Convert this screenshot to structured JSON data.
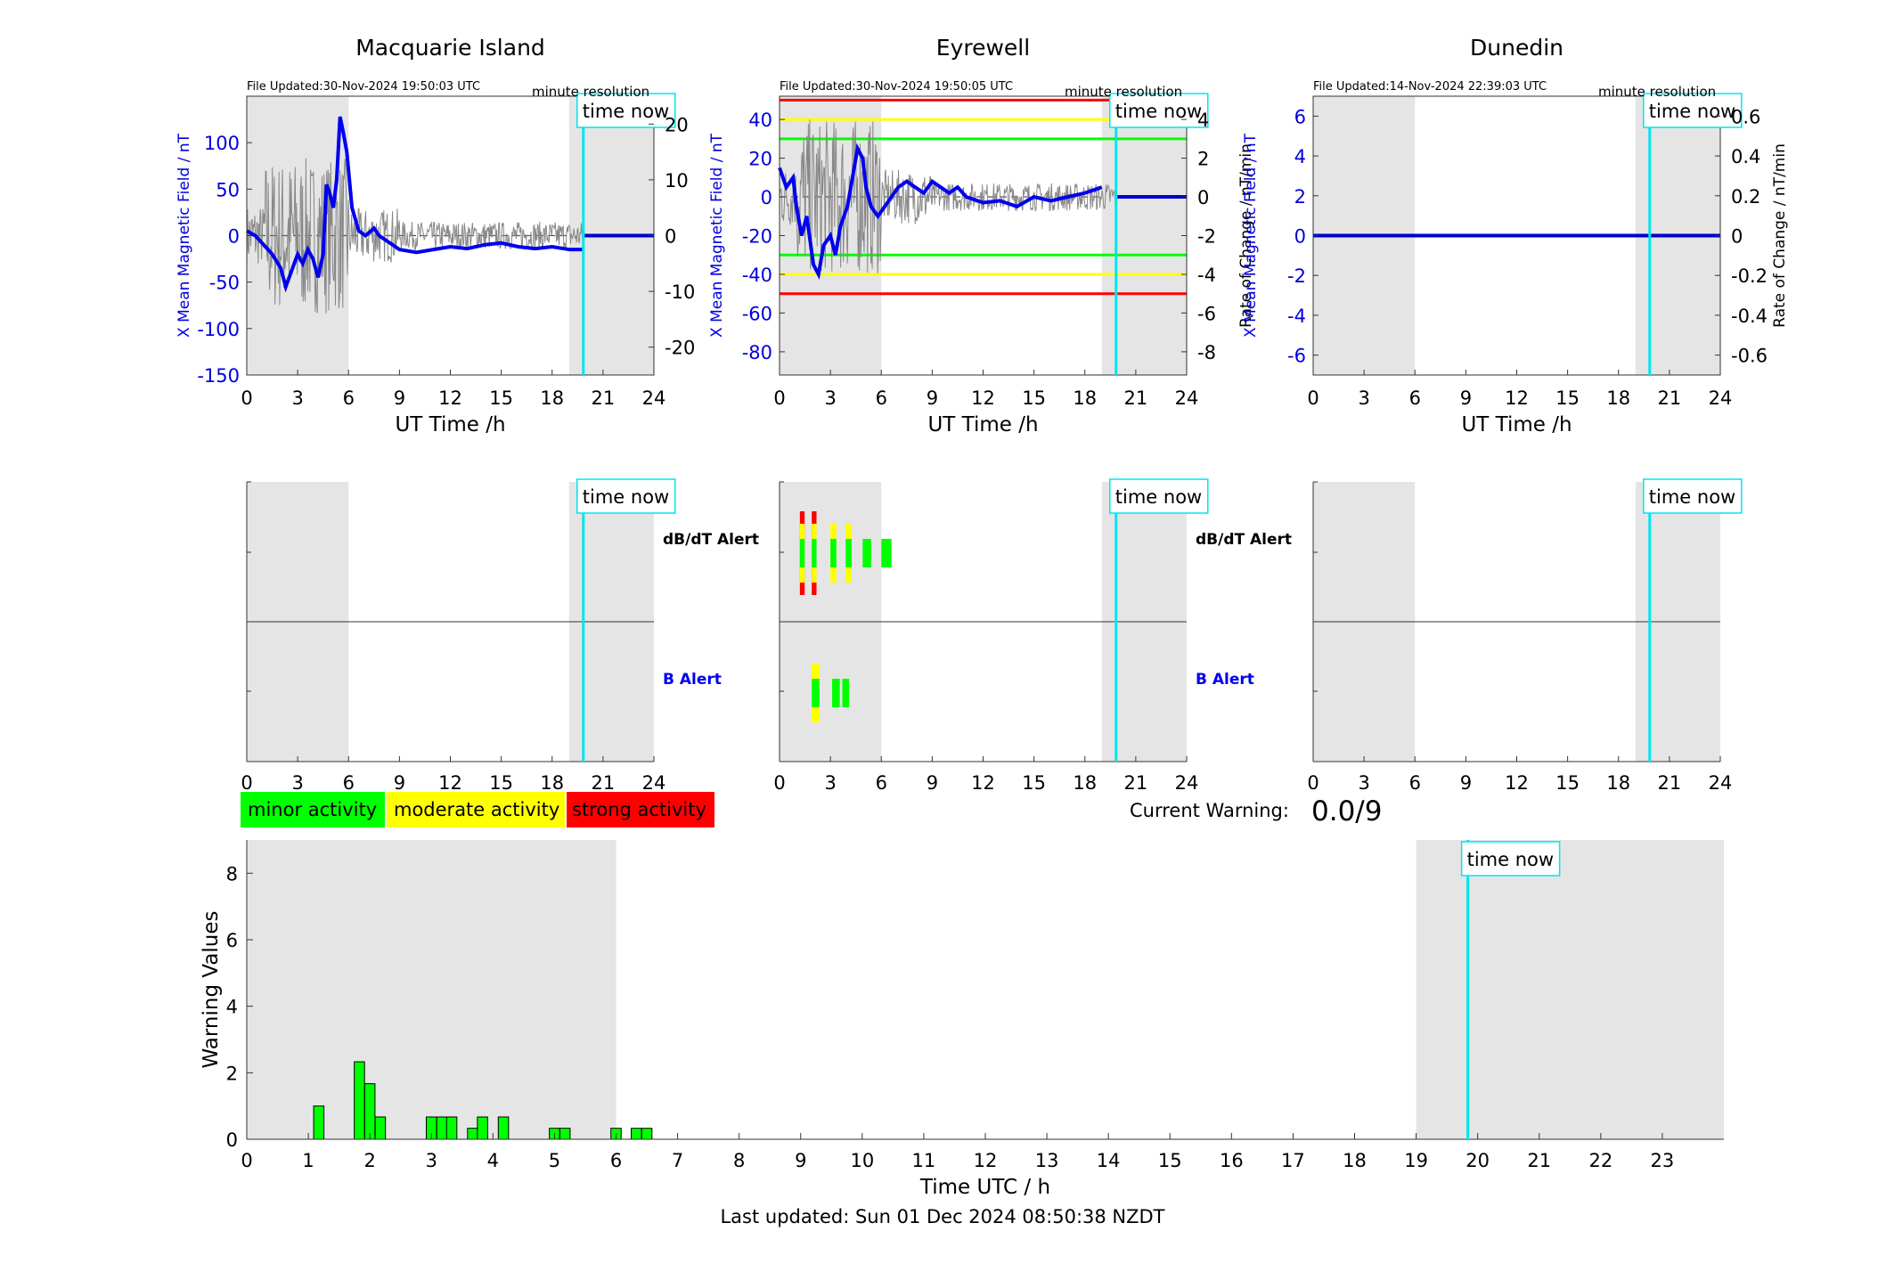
{
  "panels": [
    {
      "title": "Macquarie Island",
      "file_updated": "File Updated:30-Nov-2024 19:50:03 UTC",
      "resolution": "minute resolution",
      "left_ylabel": "X Mean Magnetic Field / nT",
      "right_ylabel": "",
      "left_yticks": [
        100,
        50,
        0,
        -50,
        -100,
        -150
      ],
      "right_yticks": [
        20,
        10,
        0,
        -10,
        -20
      ],
      "left_ylim": [
        -150,
        150
      ],
      "right_ylim": [
        -25,
        25
      ]
    },
    {
      "title": "Eyrewell",
      "file_updated": "File Updated:30-Nov-2024 19:50:05 UTC",
      "resolution": "minute resolution",
      "left_ylabel": "X Mean Magnetic Field / nT",
      "right_ylabel": "Rate of Change / nT/min",
      "left_yticks": [
        40,
        20,
        0,
        -20,
        -40,
        -60,
        -80
      ],
      "right_yticks": [
        4,
        2,
        0,
        -2,
        -4,
        -6,
        -8
      ],
      "left_ylim": [
        -92,
        52
      ],
      "right_ylim": [
        -9.2,
        5.2
      ],
      "thresholds": [
        {
          "value": 50,
          "color": "#ff0000"
        },
        {
          "value": 40,
          "color": "#ffff00"
        },
        {
          "value": 30,
          "color": "#00ff00"
        },
        {
          "value": -30,
          "color": "#00ff00"
        },
        {
          "value": -40,
          "color": "#ffff00"
        },
        {
          "value": -50,
          "color": "#ff0000"
        }
      ]
    },
    {
      "title": "Dunedin",
      "file_updated": "File Updated:14-Nov-2024 22:39:03 UTC",
      "resolution": "minute resolution",
      "left_ylabel": "X Mean Magnetic Field / nT",
      "right_ylabel": "Rate of Change / nT/min",
      "left_yticks": [
        6,
        4,
        2,
        0,
        -2,
        -4,
        -6
      ],
      "right_yticks": [
        "0.6",
        "0.4",
        "0.2",
        "0",
        "-0.2",
        "-0.4",
        "-0.6"
      ],
      "left_ylim": [
        -7,
        7
      ],
      "right_ylim": [
        -0.7,
        0.7
      ]
    }
  ],
  "top_xlabel": "UT Time /h",
  "x_ticks": [
    0,
    3,
    6,
    9,
    12,
    15,
    18,
    21,
    24
  ],
  "time_now_label": "time now",
  "time_now_hour": 19.84,
  "night_shading": [
    [
      0,
      6
    ],
    [
      19,
      24
    ]
  ],
  "alert_labels": {
    "dbdt": "dB/dT Alert",
    "b": "B Alert"
  },
  "legend": [
    {
      "label": "minor activity",
      "color": "#00ff00"
    },
    {
      "label": "moderate activity",
      "color": "#ffff00"
    },
    {
      "label": "strong activity",
      "color": "#ff0000"
    }
  ],
  "current_warning_label": "Current Warning:",
  "current_warning_value": "0.0/9",
  "eyrewell_alerts": {
    "dbdt": [
      {
        "x": 1.2,
        "w": 0.28,
        "level": "strong"
      },
      {
        "x": 1.9,
        "w": 0.28,
        "level": "strong"
      },
      {
        "x": 3.0,
        "w": 0.35,
        "level": "moderate"
      },
      {
        "x": 3.9,
        "w": 0.35,
        "level": "moderate"
      },
      {
        "x": 4.9,
        "w": 0.5,
        "level": "minor"
      },
      {
        "x": 6.0,
        "w": 0.6,
        "level": "minor"
      }
    ],
    "b": [
      {
        "x": 1.9,
        "w": 0.45,
        "level": "moderate"
      },
      {
        "x": 3.1,
        "w": 0.45,
        "level": "minor"
      },
      {
        "x": 3.7,
        "w": 0.4,
        "level": "minor"
      }
    ]
  },
  "chart_data": {
    "type": "bar",
    "xlabel": "Time UTC / h",
    "ylabel": "Warning Values",
    "xlim": [
      0,
      24
    ],
    "ylim": [
      0,
      9
    ],
    "x_ticks": [
      0,
      1,
      2,
      3,
      4,
      5,
      6,
      7,
      8,
      9,
      10,
      11,
      12,
      13,
      14,
      15,
      16,
      17,
      18,
      19,
      20,
      21,
      22,
      23
    ],
    "y_ticks": [
      0,
      2,
      4,
      6,
      8
    ],
    "bar_width_h": 0.1667,
    "x": [
      1.17,
      1.83,
      2.0,
      2.17,
      3.0,
      3.17,
      3.33,
      3.67,
      3.83,
      4.17,
      5.0,
      5.17,
      6.0,
      6.33,
      6.5
    ],
    "values": [
      1.0,
      2.33,
      1.67,
      0.67,
      0.67,
      0.67,
      0.67,
      0.33,
      0.67,
      0.67,
      0.33,
      0.33,
      0.33,
      0.33,
      0.33
    ]
  },
  "last_updated": "Last updated: Sun 01 Dec 2024 08:50:38 NZDT"
}
